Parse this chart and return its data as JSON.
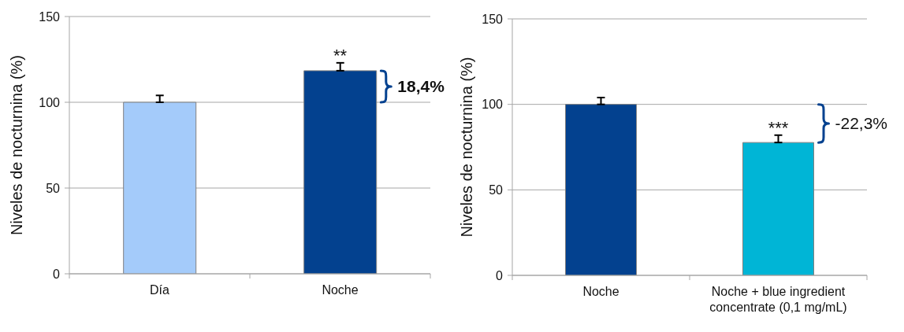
{
  "chart_data": [
    {
      "type": "bar",
      "categories": [
        "Día",
        "Noche"
      ],
      "values": [
        100,
        118.4
      ],
      "colors": [
        "#a4cbfa",
        "#03418f"
      ],
      "errors": [
        [
          100,
          104
        ],
        [
          118.4,
          123
        ]
      ],
      "ylim": [
        0,
        150
      ],
      "yticks": [
        0,
        50,
        100,
        150
      ],
      "grid": "y",
      "ylabel": "Niveles de nocturnina (%)",
      "annotations": [
        "**",
        "18,4%"
      ]
    },
    {
      "type": "bar",
      "categories": [
        "Noche",
        "Noche + blue ingredient concentrate (0,1 mg/mL)"
      ],
      "values": [
        100,
        77.7
      ],
      "colors": [
        "#03418f",
        "#00b5d6"
      ],
      "errors": [
        [
          100,
          104
        ],
        [
          77.7,
          82
        ]
      ],
      "ylim": [
        0,
        150
      ],
      "yticks": [
        0,
        50,
        100,
        150
      ],
      "grid": "y",
      "ylabel": "Niveles de nocturnina (%)",
      "annotations": [
        "***",
        "-22,3%"
      ]
    }
  ]
}
